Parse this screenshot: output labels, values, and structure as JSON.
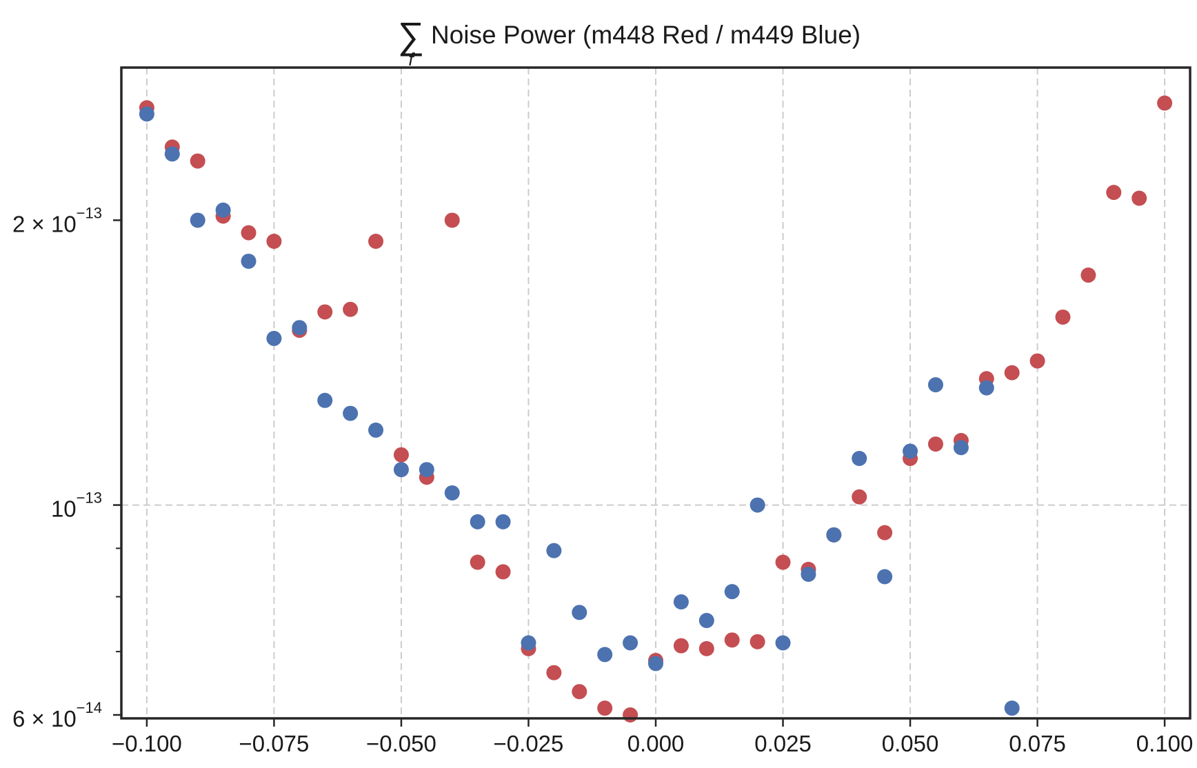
{
  "chart_data": {
    "type": "scatter",
    "title": {
      "symbol": "∑",
      "subscript": "f",
      "text": "Noise Power (m448 Red / m449 Blue)"
    },
    "xlabel": "",
    "ylabel": "",
    "y_scale": "log",
    "xlim": [
      -0.105,
      0.105
    ],
    "ylim": [
      5.95e-14,
      2.9e-13
    ],
    "grid": "dashed",
    "x_ticks": [
      -0.1,
      -0.075,
      -0.05,
      -0.025,
      0.0,
      0.025,
      0.05,
      0.075,
      0.1
    ],
    "x_tick_labels": [
      "−0.100",
      "−0.075",
      "−0.050",
      "−0.025",
      "0.000",
      "0.025",
      "0.050",
      "0.075",
      "0.100"
    ],
    "y_ticks_labeled": [
      {
        "value": 2e-13,
        "mantissa": "2 × 10",
        "exponent": "−13"
      },
      {
        "value": 1e-13,
        "mantissa": "10",
        "exponent": "−13"
      },
      {
        "value": 6e-14,
        "mantissa": "6 × 10",
        "exponent": "−14"
      }
    ],
    "y_minor_ticks": [
      7e-14,
      8e-14,
      9e-14
    ],
    "y_grid_lines": [
      1e-13
    ],
    "series": [
      {
        "color": "#c44e52",
        "x": [
          -0.1,
          -0.095,
          -0.09,
          -0.085,
          -0.08,
          -0.075,
          -0.07,
          -0.065,
          -0.06,
          -0.055,
          -0.05,
          -0.045,
          -0.04,
          -0.035,
          -0.03,
          -0.025,
          -0.02,
          -0.015,
          -0.01,
          -0.005,
          0.0,
          0.005,
          0.01,
          0.015,
          0.02,
          0.025,
          0.03,
          0.035,
          0.04,
          0.045,
          0.05,
          0.055,
          0.06,
          0.065,
          0.07,
          0.075,
          0.08,
          0.085,
          0.09,
          0.095,
          0.1
        ],
        "y": [
          2.63e-13,
          2.39e-13,
          2.31e-13,
          2.02e-13,
          1.94e-13,
          1.9e-13,
          1.53e-13,
          1.6e-13,
          1.61e-13,
          1.9e-13,
          1.13e-13,
          1.07e-13,
          2e-13,
          8.7e-14,
          8.5e-14,
          7.05e-14,
          6.65e-14,
          6.35e-14,
          6.1e-14,
          6e-14,
          6.85e-14,
          7.1e-14,
          7.05e-14,
          7.2e-14,
          7.17e-14,
          8.7e-14,
          8.55e-14,
          9.3e-14,
          1.02e-13,
          9.35e-14,
          1.12e-13,
          1.16e-13,
          1.17e-13,
          1.36e-13,
          1.38e-13,
          1.42e-13,
          1.58e-13,
          1.75e-13,
          2.14e-13,
          2.11e-13,
          2.66e-13
        ]
      },
      {
        "color": "#4c72b0",
        "x": [
          -0.1,
          -0.095,
          -0.09,
          -0.085,
          -0.08,
          -0.075,
          -0.07,
          -0.065,
          -0.06,
          -0.055,
          -0.05,
          -0.045,
          -0.04,
          -0.035,
          -0.03,
          -0.025,
          -0.02,
          -0.015,
          -0.01,
          -0.005,
          0.0,
          0.005,
          0.01,
          0.015,
          0.02,
          0.025,
          0.03,
          0.035,
          0.04,
          0.045,
          0.05,
          0.055,
          0.06,
          0.065,
          0.07
        ],
        "y": [
          2.59e-13,
          2.35e-13,
          2e-13,
          2.05e-13,
          1.81e-13,
          1.5e-13,
          1.54e-13,
          1.29e-13,
          1.25e-13,
          1.2e-13,
          1.09e-13,
          1.09e-13,
          1.03e-13,
          9.6e-14,
          9.6e-14,
          7.15e-14,
          8.95e-14,
          7.7e-14,
          6.95e-14,
          7.15e-14,
          6.8e-14,
          7.9e-14,
          7.55e-14,
          8.1e-14,
          1e-13,
          7.15e-14,
          8.45e-14,
          9.3e-14,
          1.12e-13,
          8.4e-14,
          1.14e-13,
          1.34e-13,
          1.15e-13,
          1.33e-13,
          6.1e-14
        ]
      }
    ]
  }
}
